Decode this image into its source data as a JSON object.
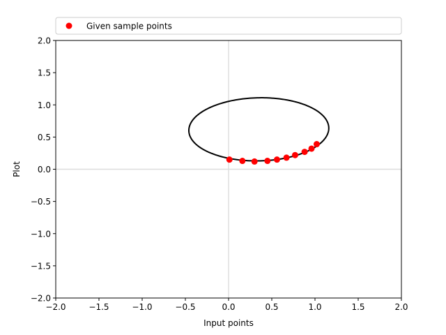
{
  "chart_data": {
    "type": "scatter",
    "xlabel": "Input points",
    "ylabel": "Plot",
    "xlim": [
      -2.0,
      2.0
    ],
    "ylim": [
      -2.0,
      2.0
    ],
    "xticks": [
      "−2.0",
      "−1.5",
      "−1.0",
      "−0.5",
      "0.0",
      "0.5",
      "1.0",
      "1.5",
      "2.0"
    ],
    "yticks": [
      "−2.0",
      "−1.5",
      "−1.0",
      "−0.5",
      "0.0",
      "0.5",
      "1.0",
      "1.5",
      "2.0"
    ],
    "grid": false,
    "reference_lines": {
      "x0": true,
      "y0": true,
      "color": "#dddddd"
    },
    "legend": {
      "placement": "top (above plot area)"
    },
    "series": [
      {
        "name": "Given sample points",
        "kind": "scatter",
        "color": "#ff0000",
        "x": [
          0.01,
          0.16,
          0.3,
          0.45,
          0.56,
          0.67,
          0.77,
          0.88,
          0.96,
          1.02
        ],
        "y": [
          0.15,
          0.13,
          0.12,
          0.13,
          0.15,
          0.18,
          0.22,
          0.27,
          0.32,
          0.39
        ]
      },
      {
        "kind": "ellipse",
        "color": "#000000",
        "center": [
          0.35,
          0.62
        ],
        "radius_x": 0.81,
        "radius_y": 0.49,
        "rotation_deg": 2
      }
    ]
  }
}
